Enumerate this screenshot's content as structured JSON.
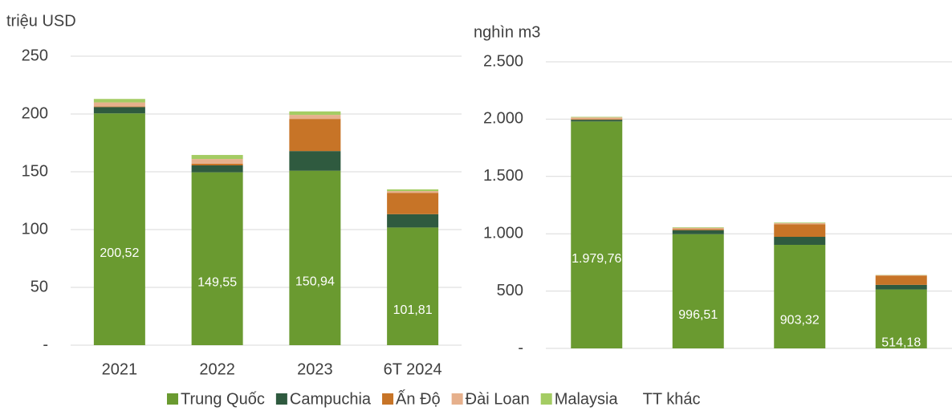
{
  "chart_data": [
    {
      "type": "bar",
      "stacked": true,
      "y_label": "triệu USD",
      "categories": [
        "2021",
        "2022",
        "2023",
        "6T 2024"
      ],
      "ylim": [
        0,
        250
      ],
      "yticks": [
        {
          "value": 0,
          "label": "-"
        },
        50,
        100,
        150,
        200,
        250
      ],
      "grid": true,
      "series": [
        {
          "name": "Trung Quốc",
          "color": "#6a9a30",
          "values": [
            200.52,
            149.55,
            150.94,
            101.81
          ],
          "value_labels": [
            "200,52",
            "149,55",
            "150,94",
            "101,81"
          ]
        },
        {
          "name": "Campuchia",
          "color": "#2f5a3f",
          "values": [
            5.5,
            6,
            17,
            11.5
          ]
        },
        {
          "name": "Ấn Độ",
          "color": "#c77427",
          "values": [
            0.5,
            1.5,
            27.8,
            18.5
          ]
        },
        {
          "name": "Đài Loan",
          "color": "#e6b08c",
          "values": [
            3.5,
            4,
            3.5,
            1.5
          ]
        },
        {
          "name": "Malaysia",
          "color": "#a4cc63",
          "values": [
            3,
            3.5,
            3,
            1.5
          ]
        },
        {
          "name": "TT khác",
          "color": "#ffffff",
          "values": [
            0,
            0,
            0,
            0
          ]
        }
      ]
    },
    {
      "type": "bar",
      "stacked": true,
      "y_label": "nghìn m3",
      "categories": [
        null,
        null,
        null,
        null
      ],
      "ylim": [
        0,
        2500
      ],
      "yticks": [
        {
          "value": 0,
          "label": "-"
        },
        500,
        {
          "value": 1000,
          "label": "1.000"
        },
        {
          "value": 1500,
          "label": "1.500"
        },
        {
          "value": 2000,
          "label": "2.000"
        },
        {
          "value": 2500,
          "label": "2.500"
        }
      ],
      "grid": true,
      "series": [
        {
          "name": "Trung Quốc",
          "color": "#6a9a30",
          "values": [
            1979.76,
            996.51,
            903.32,
            514.18
          ],
          "value_labels": [
            "1.979,76",
            "996,51",
            "903,32",
            "514,18"
          ]
        },
        {
          "name": "Campuchia",
          "color": "#2f5a3f",
          "values": [
            15,
            35,
            70,
            40
          ]
        },
        {
          "name": "Ấn Độ",
          "color": "#c77427",
          "values": [
            5,
            10,
            110,
            80
          ]
        },
        {
          "name": "Đài Loan",
          "color": "#e6b08c",
          "values": [
            15,
            10,
            10,
            5
          ]
        },
        {
          "name": "Malaysia",
          "color": "#a4cc63",
          "values": [
            5,
            5,
            5,
            2
          ]
        },
        {
          "name": "TT khác",
          "color": "#ffffff",
          "values": [
            0,
            0,
            0,
            0
          ]
        }
      ]
    }
  ]
}
